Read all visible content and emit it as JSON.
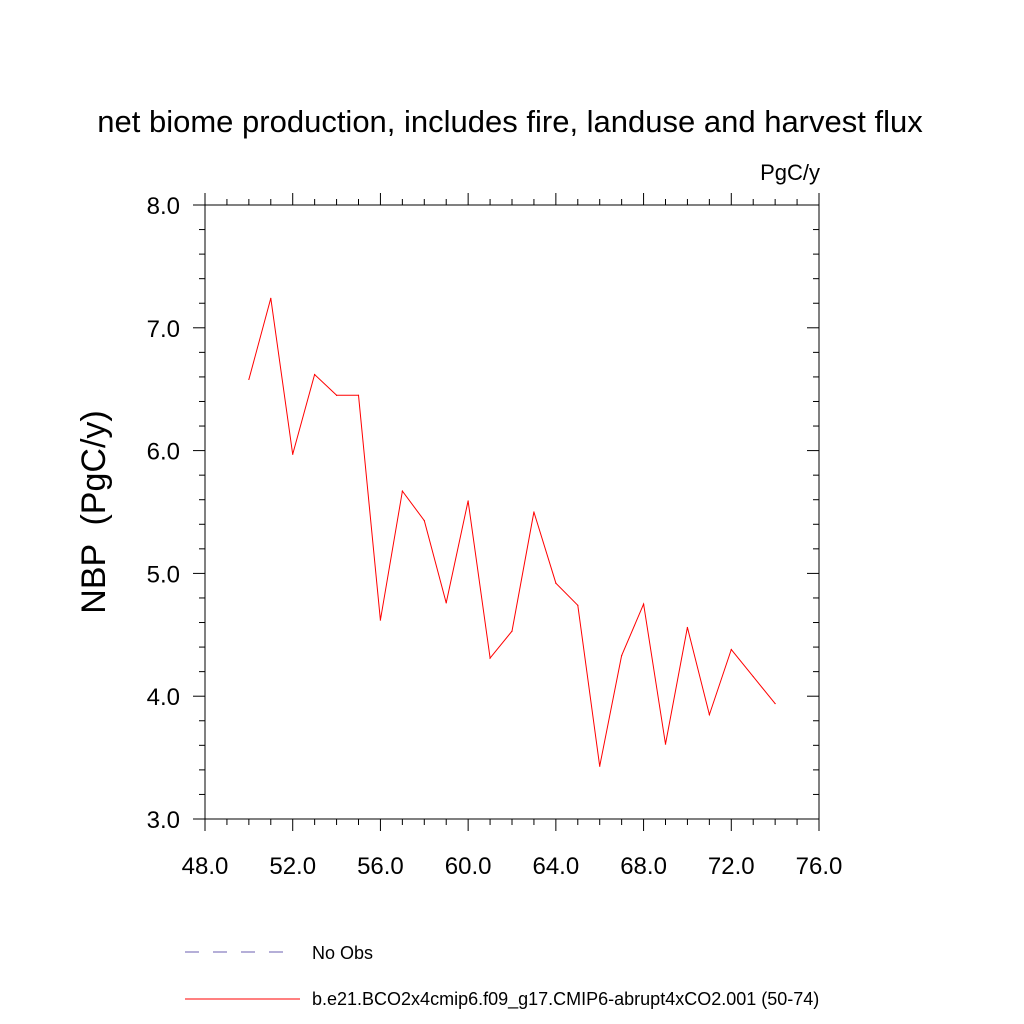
{
  "chart_data": {
    "type": "line",
    "title": "net biome production, includes fire, landuse and harvest flux",
    "units_label": "PgC/y",
    "xlabel": "",
    "ylabel": "NBP  (PgC/y)",
    "xlim": [
      48,
      76
    ],
    "ylim": [
      3,
      8
    ],
    "x_ticks": [
      48,
      52,
      56,
      60,
      64,
      68,
      72,
      76
    ],
    "x_tick_labels": [
      "48.0",
      "52.0",
      "56.0",
      "60.0",
      "64.0",
      "68.0",
      "72.0",
      "76.0"
    ],
    "y_ticks": [
      3,
      4,
      5,
      6,
      7,
      8
    ],
    "y_tick_labels": [
      "3.0",
      "4.0",
      "5.0",
      "6.0",
      "7.0",
      "8.0"
    ],
    "x_minor_step": 1,
    "y_minor_step": 0.2,
    "grid": false,
    "legend_position": "bottom",
    "series": [
      {
        "name": "b.e21.BCO2x4cmip6.f09_g17.CMIP6-abrupt4xCO2.001 (50-74)",
        "color": "#ff0000",
        "style": "solid",
        "x": [
          50,
          51,
          52,
          53,
          54,
          55,
          56,
          57,
          58,
          59,
          60,
          61,
          62,
          63,
          64,
          65,
          66,
          67,
          68,
          69,
          70,
          71,
          72,
          73,
          74
        ],
        "y": [
          6.58,
          7.24,
          5.97,
          6.62,
          6.45,
          6.45,
          4.62,
          5.67,
          5.43,
          4.76,
          5.59,
          4.31,
          4.53,
          5.5,
          4.92,
          4.74,
          3.43,
          4.33,
          4.75,
          3.61,
          4.56,
          3.85,
          4.38,
          4.16,
          3.94
        ]
      }
    ],
    "legend": [
      {
        "label": "No Obs",
        "color": "#6b5fb0",
        "style": "dashed"
      },
      {
        "label": "b.e21.BCO2x4cmip6.f09_g17.CMIP6-abrupt4xCO2.001 (50-74)",
        "color": "#ff0000",
        "style": "solid"
      }
    ]
  }
}
